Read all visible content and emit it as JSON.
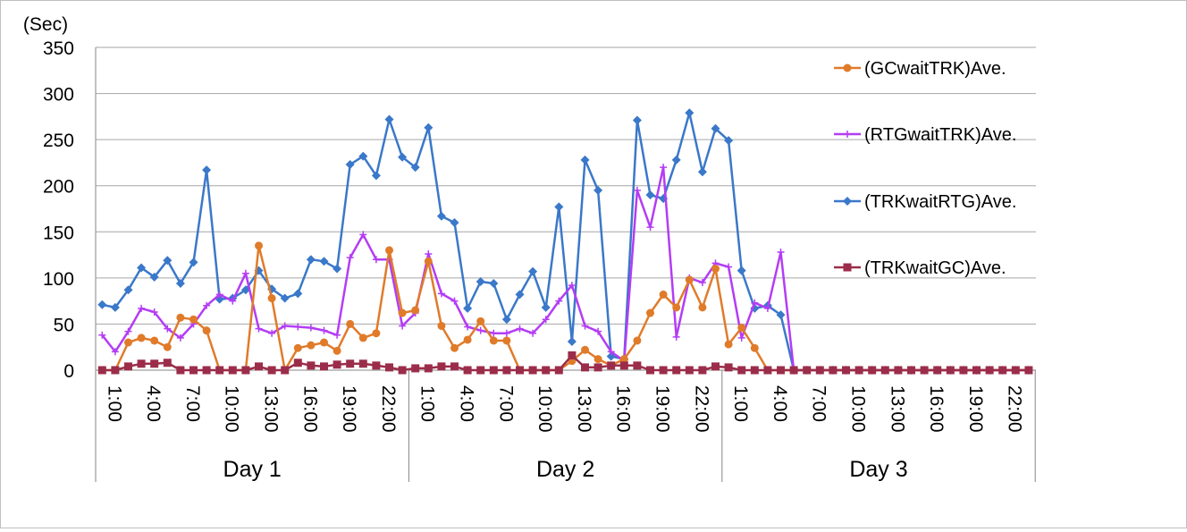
{
  "chart_data": {
    "type": "line",
    "y_unit_label": "(Sec)",
    "ylim": [
      0,
      350
    ],
    "y_ticks": [
      "0",
      "50",
      "100",
      "150",
      "200",
      "250",
      "300",
      "350"
    ],
    "grid": "horizontal",
    "legend_position": "right",
    "x_tick_labels": [
      "1:00",
      "4:00",
      "7:00",
      "10:00",
      "13:00",
      "16:00",
      "19:00",
      "22:00",
      "1:00",
      "4:00",
      "7:00",
      "10:00",
      "13:00",
      "16:00",
      "19:00",
      "22:00",
      "1:00",
      "4:00",
      "7:00",
      "10:00",
      "13:00",
      "16:00",
      "19:00",
      "22:00"
    ],
    "groups": [
      "Day 1",
      "Day 2",
      "Day 3"
    ],
    "series": [
      {
        "name": "(GCwaitTRK)Ave.",
        "color": "#e07b2a",
        "marker": "circle",
        "values": [
          0,
          0,
          30,
          35,
          32,
          25,
          57,
          55,
          43,
          0,
          0,
          0,
          135,
          78,
          0,
          24,
          27,
          30,
          21,
          50,
          35,
          40,
          130,
          62,
          65,
          118,
          48,
          24,
          33,
          53,
          32,
          32,
          0,
          0,
          0,
          0,
          10,
          22,
          12,
          5,
          12,
          32,
          62,
          82,
          68,
          98,
          68,
          110,
          28,
          46,
          24,
          0,
          0,
          0,
          0,
          0,
          0,
          0,
          0,
          0,
          0,
          0,
          0,
          0,
          0,
          0,
          0,
          0,
          0,
          0,
          0,
          0
        ]
      },
      {
        "name": "(RTGwaitTRK)Ave.",
        "color": "#b43cf5",
        "marker": "plus",
        "values": [
          38,
          20,
          42,
          67,
          63,
          45,
          35,
          50,
          70,
          82,
          75,
          105,
          45,
          40,
          48,
          47,
          46,
          43,
          38,
          122,
          147,
          120,
          120,
          48,
          62,
          126,
          83,
          75,
          47,
          43,
          40,
          40,
          45,
          40,
          55,
          75,
          92,
          48,
          42,
          20,
          10,
          195,
          155,
          220,
          36,
          100,
          95,
          116,
          112,
          35,
          73,
          67,
          128,
          0,
          0,
          0,
          0,
          0,
          0,
          0,
          0,
          0,
          0,
          0,
          0,
          0,
          0,
          0,
          0,
          0,
          0,
          0
        ]
      },
      {
        "name": "(TRKwaitRTG)Ave.",
        "color": "#3a78c9",
        "marker": "diamond",
        "values": [
          71,
          68,
          87,
          111,
          101,
          119,
          94,
          117,
          217,
          77,
          78,
          87,
          108,
          88,
          78,
          83,
          120,
          118,
          110,
          223,
          232,
          211,
          272,
          231,
          220,
          263,
          167,
          160,
          67,
          96,
          94,
          55,
          82,
          107,
          68,
          177,
          31,
          228,
          195,
          15,
          12,
          271,
          190,
          186,
          228,
          279,
          215,
          262,
          249,
          108,
          67,
          70,
          60,
          0,
          0,
          0,
          0,
          0,
          0,
          0,
          0,
          0,
          0,
          0,
          0,
          0,
          0,
          0,
          0,
          0,
          0,
          0
        ]
      },
      {
        "name": "(TRKwaitGC)Ave.",
        "color": "#9b2d4a",
        "marker": "square",
        "values": [
          0,
          0,
          4,
          7,
          7,
          8,
          0,
          0,
          0,
          0,
          0,
          0,
          4,
          0,
          0,
          8,
          5,
          4,
          6,
          7,
          7,
          5,
          3,
          0,
          2,
          2,
          4,
          4,
          0,
          0,
          0,
          0,
          0,
          0,
          0,
          0,
          16,
          3,
          3,
          5,
          5,
          5,
          0,
          0,
          0,
          0,
          0,
          4,
          3,
          0,
          0,
          0,
          0,
          0,
          0,
          0,
          0,
          0,
          0,
          0,
          0,
          0,
          0,
          0,
          0,
          0,
          0,
          0,
          0,
          0,
          0,
          0
        ]
      }
    ]
  }
}
